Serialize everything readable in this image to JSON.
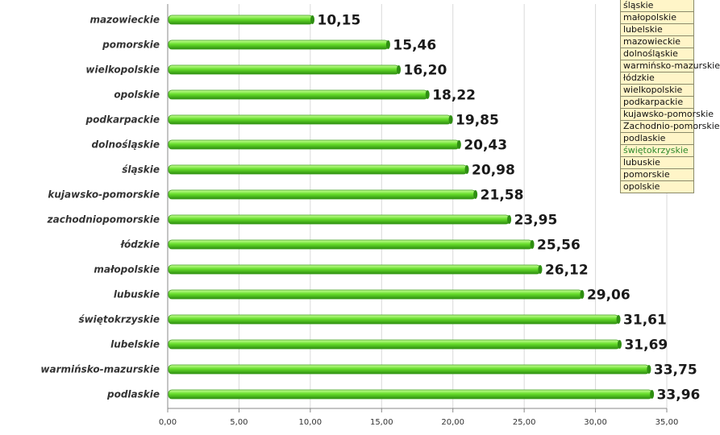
{
  "chart_data": {
    "type": "bar",
    "orientation": "horizontal",
    "categories": [
      "mazowieckie",
      "pomorskie",
      "wielkopolskie",
      "opolskie",
      "podkarpackie",
      "dolnośląskie",
      "śląskie",
      "kujawsko-pomorskie",
      "zachodniopomorskie",
      "łódzkie",
      "małopolskie",
      "lubuskie",
      "świętokrzyskie",
      "lubelskie",
      "warmińsko-mazurskie",
      "podlaskie"
    ],
    "values": [
      10.15,
      15.46,
      16.2,
      18.22,
      19.85,
      20.43,
      20.98,
      21.58,
      23.95,
      25.56,
      26.12,
      29.06,
      31.61,
      31.69,
      33.75,
      33.96
    ],
    "value_labels": [
      "10,15",
      "15,46",
      "16,20",
      "18,22",
      "19,85",
      "20,43",
      "20,98",
      "21,58",
      "23,95",
      "25,56",
      "26,12",
      "29,06",
      "31,61",
      "31,69",
      "33,75",
      "33,96"
    ],
    "highlight_index": 12,
    "x_ticks": [
      "0,00",
      "5,00",
      "10,00",
      "15,00",
      "20,00",
      "25,00",
      "30,00",
      "35,00"
    ],
    "xlim": [
      0,
      35
    ],
    "grid": true,
    "title": "",
    "xlabel": "",
    "ylabel": "",
    "bar_color": "#66dd2a",
    "highlight_color": "#2e8b2e",
    "legend_entries": [
      "śląskie",
      "małopolskie",
      "lubelskie",
      "mazowieckie",
      "dolnośląskie",
      "warmińsko-mazurskie",
      "łódzkie",
      "wielkopolskie",
      "podkarpackie",
      "kujawsko-pomorskie",
      "Zachodnio-pomorskie",
      "podlaskie",
      "świętokrzyskie",
      "lubuskie",
      "pomorskie",
      "opolskie"
    ],
    "legend_placement": "top-right",
    "legend_highlight_index": 12
  }
}
